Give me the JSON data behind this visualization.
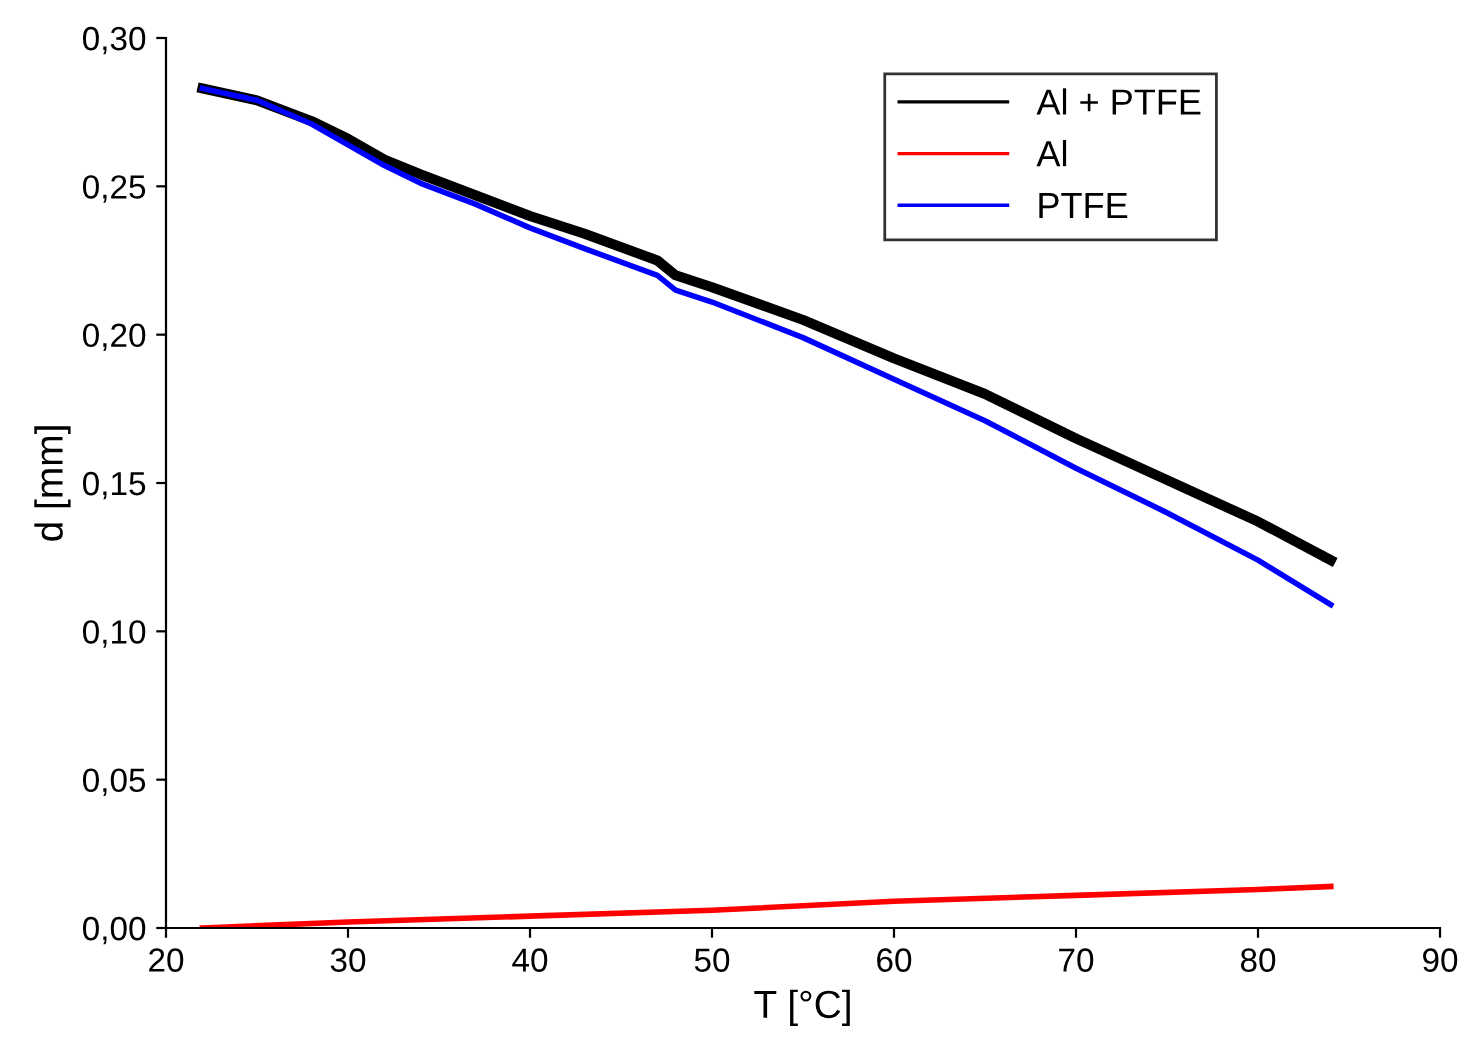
{
  "chart_data": {
    "type": "line",
    "xlabel": "T [°C]",
    "ylabel": "d [mm]",
    "xlim": [
      20,
      90
    ],
    "xticks": [
      20,
      30,
      40,
      50,
      60,
      70,
      80,
      90
    ],
    "ylim": [
      0,
      0.3
    ],
    "yticks": [
      {
        "value": 0,
        "label": "0,00"
      },
      {
        "value": 0.05,
        "label": "0,05"
      },
      {
        "value": 0.1,
        "label": "0,10"
      },
      {
        "value": 0.15,
        "label": "0,15"
      },
      {
        "value": 0.2,
        "label": "0,20"
      },
      {
        "value": 0.25,
        "label": "0,25"
      },
      {
        "value": 0.3,
        "label": "0,30"
      }
    ],
    "legend": "top right",
    "grid": false,
    "series": [
      {
        "name": "Al + PTFE",
        "color": "#000000",
        "x": [
          22,
          25,
          28,
          30,
          32,
          34,
          37,
          40,
          43,
          47,
          48,
          50,
          55,
          60,
          65,
          70,
          75,
          80,
          84
        ],
        "values": [
          0.283,
          0.279,
          0.272,
          0.266,
          0.259,
          0.254,
          0.247,
          0.24,
          0.234,
          0.225,
          0.22,
          0.216,
          0.205,
          0.192,
          0.18,
          0.165,
          0.151,
          0.137,
          0.124
        ]
      },
      {
        "name": "Al",
        "color": "#ff0000",
        "x": [
          22,
          30,
          40,
          50,
          60,
          70,
          80,
          84
        ],
        "values": [
          0.0,
          0.002,
          0.004,
          0.006,
          0.009,
          0.011,
          0.013,
          0.014
        ]
      },
      {
        "name": "PTFE",
        "color": "#0000ff",
        "x": [
          22,
          25,
          28,
          30,
          32,
          34,
          37,
          40,
          43,
          47,
          48,
          50,
          55,
          60,
          65,
          70,
          75,
          80,
          84
        ],
        "values": [
          0.283,
          0.279,
          0.271,
          0.264,
          0.257,
          0.251,
          0.244,
          0.236,
          0.229,
          0.22,
          0.215,
          0.211,
          0.199,
          0.185,
          0.171,
          0.155,
          0.14,
          0.124,
          0.109
        ]
      }
    ]
  }
}
